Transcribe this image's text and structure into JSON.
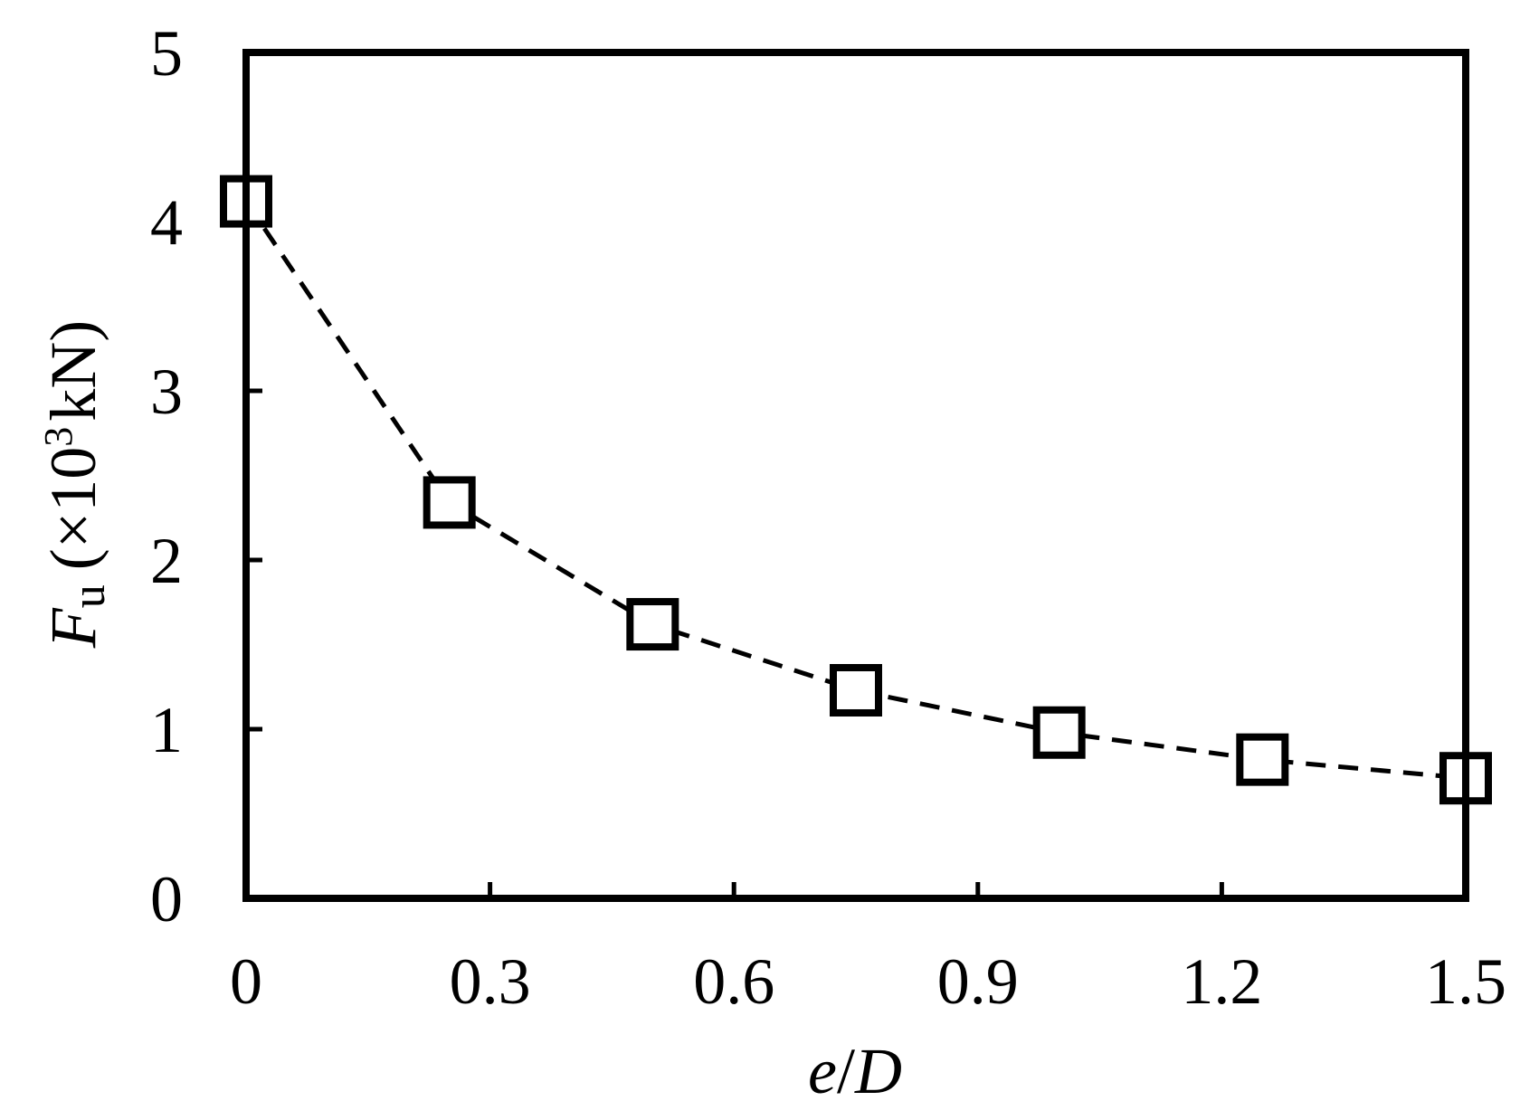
{
  "chart_data": {
    "type": "line",
    "xlabel": {
      "var": "e",
      "sep": "/",
      "var2": "D"
    },
    "ylabel": {
      "var": "F",
      "sub": "u",
      "unit_open": "(×10",
      "unit_sup": "3",
      "unit_close": "kN)"
    },
    "xlim": [
      0,
      1.5
    ],
    "ylim": [
      0,
      5
    ],
    "xticks": [
      "0",
      "0.3",
      "0.6",
      "0.9",
      "1.2",
      "1.5"
    ],
    "yticks": [
      "0",
      "1",
      "2",
      "3",
      "4",
      "5"
    ],
    "grid": false,
    "legend": "none",
    "series": [
      {
        "marker": "open-square",
        "line_style": "dashed",
        "color": "#000000",
        "x": [
          0,
          0.25,
          0.5,
          0.75,
          1.0,
          1.25,
          1.5
        ],
        "y": [
          4.12,
          2.34,
          1.62,
          1.23,
          0.98,
          0.82,
          0.71
        ]
      }
    ]
  }
}
